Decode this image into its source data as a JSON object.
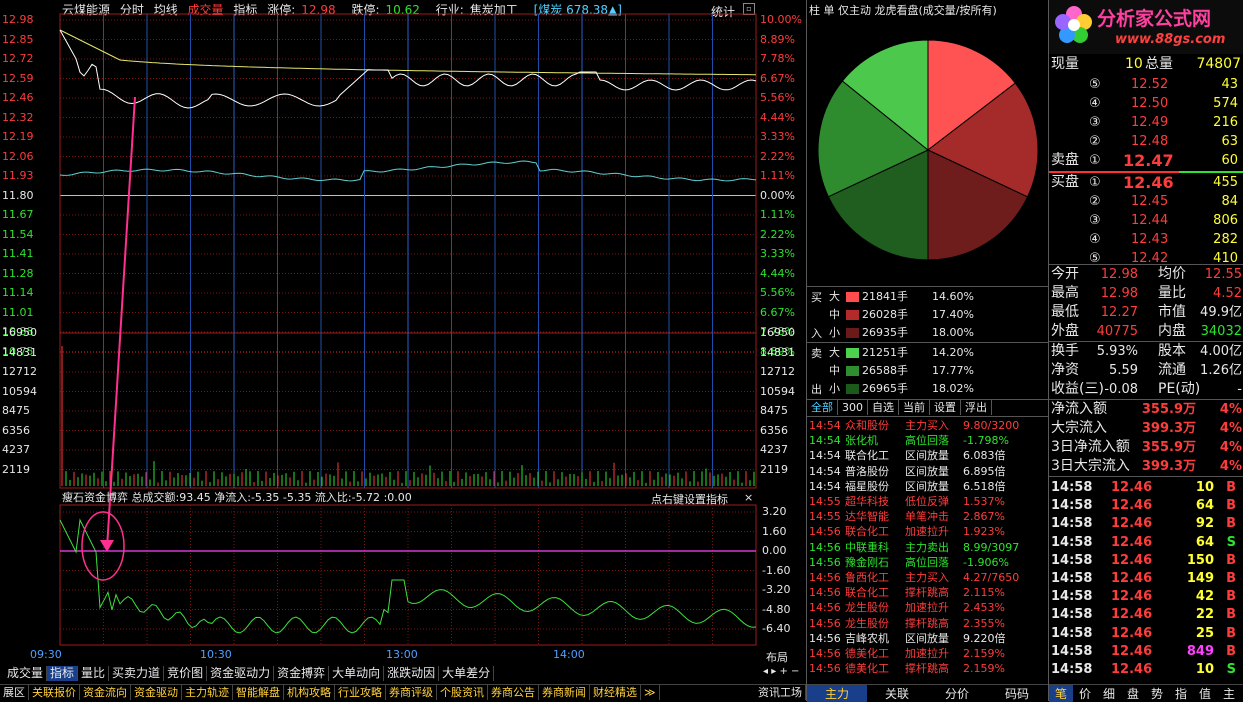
{
  "header": {
    "stock": "云煤能源",
    "items": [
      "分时",
      "均线",
      "成交量",
      "指标"
    ],
    "limit_up_label": "涨停:",
    "limit_up": "12.98",
    "limit_down_label": "跌停:",
    "limit_down": "10.62",
    "industry_label": "行业:",
    "industry": "焦炭加工",
    "sector": "[煤炭 678.38▲]",
    "stats_label": "统计"
  },
  "price_axis": {
    "left": [
      "12.98",
      "12.85",
      "12.72",
      "12.59",
      "12.46",
      "12.32",
      "12.19",
      "12.06",
      "11.93",
      "11.80",
      "11.67",
      "11.54",
      "11.41",
      "11.28",
      "11.14",
      "11.01",
      "10.88",
      "10.75"
    ],
    "right": [
      "10.00%",
      "8.89%",
      "7.78%",
      "6.67%",
      "5.56%",
      "4.44%",
      "3.33%",
      "2.22%",
      "1.11%",
      "0.00%",
      "1.11%",
      "2.22%",
      "3.33%",
      "4.44%",
      "5.56%",
      "6.67%",
      "7.78%",
      "8.89%"
    ]
  },
  "volume_axis": [
    "16950",
    "14831",
    "12712",
    "10594",
    "8475",
    "6356",
    "4237",
    "2119"
  ],
  "indicator": {
    "title": "瘦石资金博弈",
    "total_label": "总成交额:",
    "total": "93.45",
    "net_in_label": "净流入:",
    "net_in": "-5.35",
    "net_in2": "-5.35",
    "ratio_label": "流入比:",
    "ratio": "-5.72",
    "extra": ":0.00",
    "right_note": "点右键设置指标",
    "close": "×",
    "axis": [
      "3.20",
      "1.60",
      "0.00",
      "-1.60",
      "-3.20",
      "-4.80",
      "-6.40"
    ]
  },
  "time_axis": [
    "09:30",
    "10:30",
    "13:00",
    "14:00"
  ],
  "bottom_tabs": [
    "成交量",
    "指标",
    "量比",
    "买卖力道",
    "竞价图",
    "资金驱动力",
    "资金搏弈",
    "大单动向",
    "涨跌动因",
    "大单差分"
  ],
  "layout_label": "布局",
  "footer_tabs": [
    "展区",
    "关联报价",
    "资金流向",
    "资金驱动",
    "主力轨迹",
    "智能解盘",
    "机构攻略",
    "行业攻略",
    "券商评级",
    "个股资讯",
    "券商公告",
    "券商新闻",
    "财经精选",
    "≫",
    "资讯工场"
  ],
  "mid": {
    "tabs": [
      "柱",
      "单",
      "仅主动",
      "龙虎看盘(成交量/按所有)"
    ],
    "buy_label": [
      "买",
      "入"
    ],
    "sell_label": [
      "卖",
      "出"
    ],
    "buy": [
      {
        "size": "大",
        "vol": "21841手",
        "pct": "14.60%",
        "color": "#ff4d4d"
      },
      {
        "size": "中",
        "vol": "26028手",
        "pct": "17.40%",
        "color": "#b22a2a"
      },
      {
        "size": "小",
        "vol": "26935手",
        "pct": "18.00%",
        "color": "#6b1a1a"
      }
    ],
    "sell": [
      {
        "size": "大",
        "vol": "21251手",
        "pct": "14.20%",
        "color": "#4cd24c"
      },
      {
        "size": "中",
        "vol": "26588手",
        "pct": "17.77%",
        "color": "#2f8f2f"
      },
      {
        "size": "小",
        "vol": "26965手",
        "pct": "18.02%",
        "color": "#1c5a1c"
      }
    ],
    "filters": [
      "全部",
      "300",
      "自选",
      "当前",
      "设置",
      "浮出"
    ],
    "events": [
      {
        "t": "14:54",
        "name": "众和股份",
        "type": "主力买入",
        "val": "9.80/3200",
        "c": "red"
      },
      {
        "t": "14:54",
        "name": "张化机",
        "type": "高位回落",
        "val": "-1.798%",
        "c": "green"
      },
      {
        "t": "14:54",
        "name": "联合化工",
        "type": "区间放量",
        "val": "6.083倍",
        "c": "white"
      },
      {
        "t": "14:54",
        "name": "普洛股份",
        "type": "区间放量",
        "val": "6.895倍",
        "c": "white"
      },
      {
        "t": "14:54",
        "name": "福星股份",
        "type": "区间放量",
        "val": "6.518倍",
        "c": "white"
      },
      {
        "t": "14:55",
        "name": "超华科技",
        "type": "低位反弹",
        "val": "1.537%",
        "c": "red"
      },
      {
        "t": "14:55",
        "name": "达华智能",
        "type": "单笔冲击",
        "val": "2.867%",
        "c": "red"
      },
      {
        "t": "14:56",
        "name": "联合化工",
        "type": "加速拉升",
        "val": "1.923%",
        "c": "red"
      },
      {
        "t": "14:56",
        "name": "中联重科",
        "type": "主力卖出",
        "val": "8.99/3097",
        "c": "green"
      },
      {
        "t": "14:56",
        "name": "豫金刚石",
        "type": "高位回落",
        "val": "-1.906%",
        "c": "green"
      },
      {
        "t": "14:56",
        "name": "鲁西化工",
        "type": "主力买入",
        "val": "4.27/7650",
        "c": "red"
      },
      {
        "t": "14:56",
        "name": "联合化工",
        "type": "撑杆跳高",
        "val": "2.115%",
        "c": "red"
      },
      {
        "t": "14:56",
        "name": "龙生股份",
        "type": "加速拉升",
        "val": "2.453%",
        "c": "red"
      },
      {
        "t": "14:56",
        "name": "龙生股份",
        "type": "撑杆跳高",
        "val": "2.355%",
        "c": "red"
      },
      {
        "t": "14:56",
        "name": "吉峰农机",
        "type": "区间放量",
        "val": "9.220倍",
        "c": "white"
      },
      {
        "t": "14:56",
        "name": "德美化工",
        "type": "加速拉升",
        "val": "2.159%",
        "c": "red"
      },
      {
        "t": "14:56",
        "name": "德美化工",
        "type": "撑杆跳高",
        "val": "2.159%",
        "c": "red"
      }
    ],
    "bottom_tabs": [
      "主力",
      "关联",
      "分价",
      "码码"
    ]
  },
  "pie": {
    "slices": [
      {
        "label": "买大",
        "value": 14.6,
        "color": "#ff5252"
      },
      {
        "label": "买中",
        "value": 17.4,
        "color": "#a52a2a"
      },
      {
        "label": "买小",
        "value": 18.0,
        "color": "#6e1c1c"
      },
      {
        "label": "卖小",
        "value": 18.02,
        "color": "#1f5e1f"
      },
      {
        "label": "卖中",
        "value": 17.77,
        "color": "#2e8b2e"
      },
      {
        "label": "卖大",
        "value": 14.2,
        "color": "#4cc94c"
      }
    ]
  },
  "right": {
    "logo_text": "分析家公式网",
    "logo_url": "www.88gs.com",
    "now_label": "现量",
    "now": "10",
    "total_label": "总量",
    "total": "74807",
    "asks": [
      {
        "n": "⑤",
        "p": "12.52",
        "v": "43"
      },
      {
        "n": "④",
        "p": "12.50",
        "v": "574"
      },
      {
        "n": "③",
        "p": "12.49",
        "v": "216"
      },
      {
        "n": "②",
        "p": "12.48",
        "v": "63"
      },
      {
        "n": "①",
        "p": "12.47",
        "v": "60"
      }
    ],
    "ask_label": "卖盘",
    "bid_label": "买盘",
    "bids": [
      {
        "n": "①",
        "p": "12.46",
        "v": "455"
      },
      {
        "n": "②",
        "p": "12.45",
        "v": "84"
      },
      {
        "n": "③",
        "p": "12.44",
        "v": "806"
      },
      {
        "n": "④",
        "p": "12.43",
        "v": "282"
      },
      {
        "n": "⑤",
        "p": "12.42",
        "v": "410"
      }
    ],
    "stats": [
      {
        "l1": "今开",
        "v1": "12.98",
        "c1": "red",
        "l2": "均价",
        "v2": "12.55",
        "c2": "red"
      },
      {
        "l1": "最高",
        "v1": "12.98",
        "c1": "red",
        "l2": "量比",
        "v2": "4.52",
        "c2": "red"
      },
      {
        "l1": "最低",
        "v1": "12.27",
        "c1": "red",
        "l2": "市值",
        "v2": "49.9亿",
        "c2": "white"
      },
      {
        "l1": "外盘",
        "v1": "40775",
        "c1": "red",
        "l2": "内盘",
        "v2": "34032",
        "c2": "green"
      }
    ],
    "stats2": [
      {
        "l1": "换手",
        "v1": "5.93%",
        "l2": "股本",
        "v2": "4.00亿"
      },
      {
        "l1": "净资",
        "v1": "5.59",
        "l2": "流通",
        "v2": "1.26亿"
      },
      {
        "l1": "收益(三)",
        "v1": "-0.08",
        "l2": "PE(动)",
        "v2": "-"
      }
    ],
    "flows": [
      {
        "l": "净流入额",
        "v": "355.9万",
        "p": "4%"
      },
      {
        "l": "大宗流入",
        "v": "399.3万",
        "p": "4%"
      },
      {
        "l": "3日净流入额",
        "v": "355.9万",
        "p": "4%"
      },
      {
        "l": "3日大宗流入",
        "v": "399.3万",
        "p": "4%"
      }
    ],
    "ticks": [
      {
        "t": "14:58",
        "p": "12.46",
        "v": "10",
        "s": "B"
      },
      {
        "t": "14:58",
        "p": "12.46",
        "v": "64",
        "s": "B"
      },
      {
        "t": "14:58",
        "p": "12.46",
        "v": "92",
        "s": "B"
      },
      {
        "t": "14:58",
        "p": "12.46",
        "v": "64",
        "s": "S"
      },
      {
        "t": "14:58",
        "p": "12.46",
        "v": "150",
        "s": "B"
      },
      {
        "t": "14:58",
        "p": "12.46",
        "v": "149",
        "s": "B"
      },
      {
        "t": "14:58",
        "p": "12.46",
        "v": "42",
        "s": "B"
      },
      {
        "t": "14:58",
        "p": "12.46",
        "v": "22",
        "s": "B"
      },
      {
        "t": "14:58",
        "p": "12.46",
        "v": "25",
        "s": "B"
      },
      {
        "t": "14:58",
        "p": "12.46",
        "v": "849",
        "s": "B"
      },
      {
        "t": "14:58",
        "p": "12.46",
        "v": "10",
        "s": "S"
      }
    ],
    "bottom_tabs": [
      "笔",
      "价",
      "细",
      "盘",
      "势",
      "指",
      "值",
      "主"
    ]
  },
  "colors": {
    "bg": "#000000",
    "grid": "#8b1a1a",
    "blue_grid": "#1e4fa8",
    "up": "#ff3c3c",
    "down": "#2ee32e"
  }
}
